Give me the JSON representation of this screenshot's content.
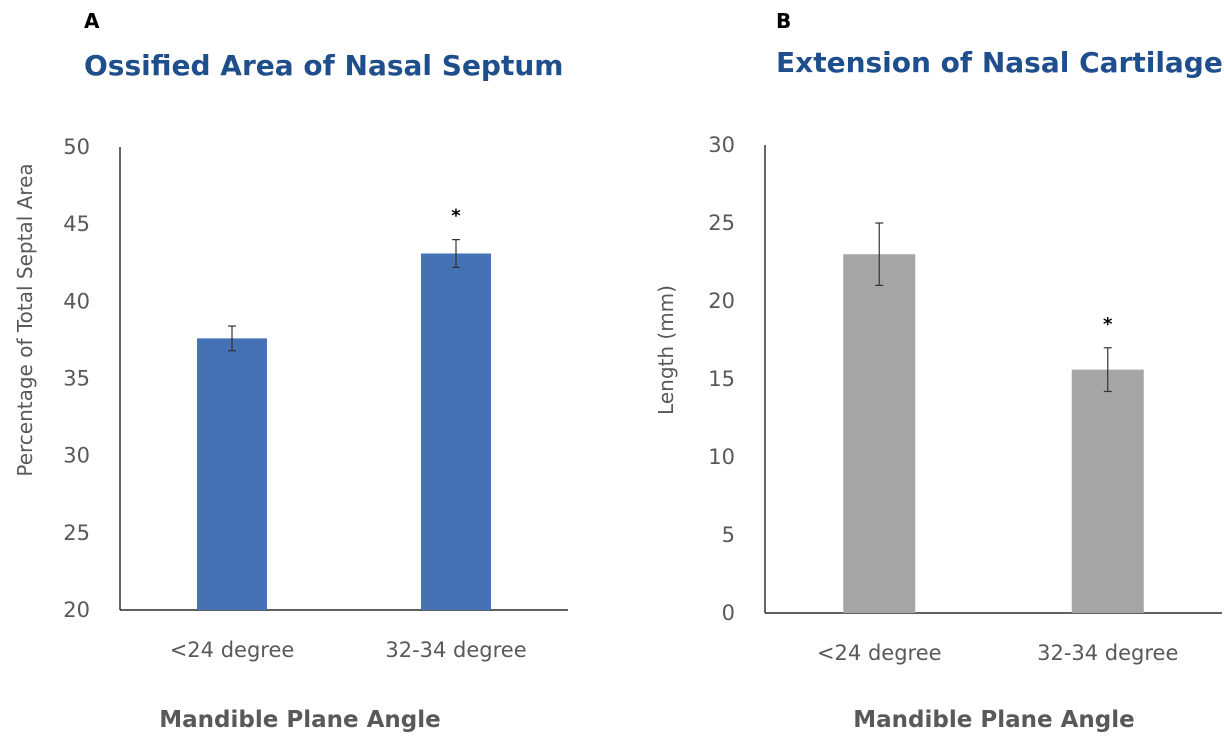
{
  "chart_data": [
    {
      "panel": "A",
      "type": "bar",
      "title": "Ossified Area of Nasal Septum",
      "xlabel": "Mandible Plane Angle",
      "ylabel": "Percentage of  Total Septal Area",
      "categories": [
        "<24 degree",
        "32-34 degree"
      ],
      "values": [
        37.6,
        43.1
      ],
      "errors": [
        0.8,
        0.9
      ],
      "significance": [
        "",
        "*"
      ],
      "ylim": [
        20,
        50
      ],
      "yticks": [
        20,
        25,
        30,
        35,
        40,
        45,
        50
      ],
      "color": "#4472b4",
      "grid": false
    },
    {
      "panel": "B",
      "type": "bar",
      "title": "Extension of Nasal Cartilage",
      "xlabel": "Mandible Plane Angle",
      "ylabel": "Length (mm)",
      "categories": [
        "<24 degree",
        "32-34 degree"
      ],
      "values": [
        23.0,
        15.6
      ],
      "errors": [
        2.0,
        1.4
      ],
      "significance": [
        "",
        "*"
      ],
      "ylim": [
        0,
        30
      ],
      "yticks": [
        0,
        5,
        10,
        15,
        20,
        25,
        30
      ],
      "color": "#a5a5a5",
      "grid": false
    }
  ]
}
